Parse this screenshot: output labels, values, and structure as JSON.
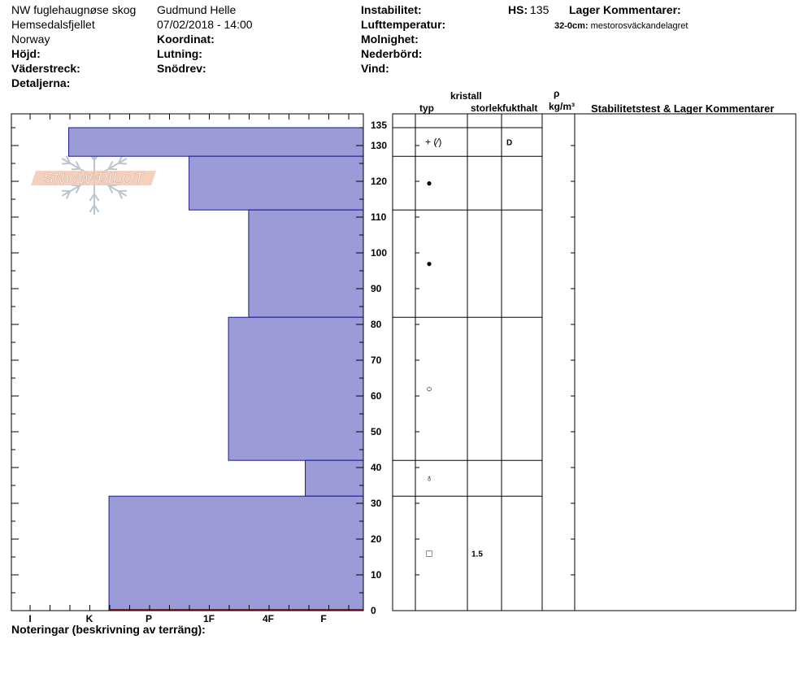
{
  "header": {
    "location": "NW fuglehaugnøse skog",
    "area": "Hemsedalsfjellet",
    "country": "Norway",
    "observer": "Gudmund Helle",
    "datetime": "07/02/2018 - 14:00",
    "labels": {
      "elevation": "Höjd:",
      "aspect": "Väderstreck:",
      "details": "Detaljerna:",
      "coordinate": "Koordinat:",
      "slope": "Lutning:",
      "snow_drift": "Snödrev:",
      "instability": "Instabilitet:",
      "air_temp": "Lufttemperatur:",
      "cloudiness": "Molnighet:",
      "precipitation": "Nederbörd:",
      "wind": "Vind:",
      "hs": "HS:",
      "layer_comments": "Lager Kommentarer:"
    },
    "hs_value": "135",
    "layer_comment": {
      "depth": "32-0cm:",
      "text": "mestorosväckandelagret"
    }
  },
  "footer": {
    "notes_label": "Noteringar (beskrivning av terräng):"
  },
  "logo": {
    "text": "SNOW PILOT"
  },
  "columns": {
    "crystal": "kristall",
    "type": "typ",
    "size": "storlek",
    "moisture": "fukthalt",
    "rho": "ρ",
    "density_unit": "kg/m³",
    "stability": "Stabilitetstest & Lager Kommentarer"
  },
  "colors": {
    "layer_fill": "#9b9bd8",
    "layer_stroke": "#1a1a8c",
    "ground_line": "#cc0000"
  },
  "chart_data": {
    "type": "bar",
    "orientation": "horizontal",
    "y_axis": {
      "range": [
        0,
        135
      ],
      "major_ticks": [
        0,
        10,
        20,
        30,
        40,
        50,
        60,
        70,
        80,
        90,
        100,
        110,
        120,
        130,
        135
      ]
    },
    "x_axis": {
      "hardness_labels": [
        "I",
        "K",
        "P",
        "1F",
        "4F",
        "F"
      ]
    },
    "layers": [
      {
        "top": 135,
        "bottom": 127,
        "hardness_index": 0.65,
        "crystal_symbol": "+ (⁄)",
        "size": "",
        "moisture": "D"
      },
      {
        "top": 127,
        "bottom": 112,
        "hardness_index": 2.67,
        "crystal_symbol": "●",
        "size": "",
        "moisture": ""
      },
      {
        "top": 112,
        "bottom": 82,
        "hardness_index": 3.67,
        "crystal_symbol": "●",
        "size": "",
        "moisture": ""
      },
      {
        "top": 82,
        "bottom": 42,
        "hardness_index": 3.33,
        "crystal_symbol": "○",
        "size": "",
        "moisture": ""
      },
      {
        "top": 42,
        "bottom": 32,
        "hardness_index": 4.67,
        "crystal_symbol": "♁",
        "size": "",
        "moisture": ""
      },
      {
        "top": 32,
        "bottom": 0,
        "hardness_index": 1.33,
        "crystal_symbol": "□",
        "size": "1.5",
        "moisture": ""
      }
    ]
  }
}
